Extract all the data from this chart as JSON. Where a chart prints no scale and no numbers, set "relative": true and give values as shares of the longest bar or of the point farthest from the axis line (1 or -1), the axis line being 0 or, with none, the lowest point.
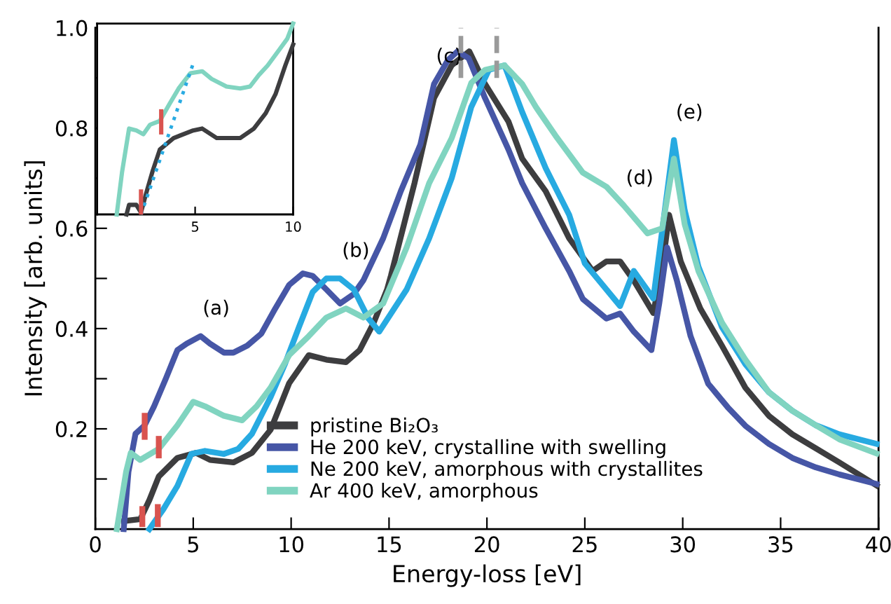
{
  "chart_data": [
    {
      "type": "line",
      "xlabel": "Energy-loss [eV]",
      "ylabel": "Intensity [arb. units]",
      "xlim": [
        0,
        40
      ],
      "ylim": [
        0,
        1.0
      ],
      "xticks": [
        0,
        5,
        10,
        15,
        20,
        25,
        30,
        35,
        40
      ],
      "yticks": [
        {
          "value": 0.1,
          "label": null
        },
        0.2,
        {
          "value": 0.3,
          "label": null
        },
        0.4,
        {
          "value": 0.5,
          "label": null
        },
        0.6,
        {
          "value": 0.7,
          "label": null
        },
        0.8,
        {
          "value": 0.9,
          "label": null
        },
        {
          "value": 1.0,
          "label": "1.0"
        }
      ],
      "legend": "bottom",
      "annotations": [
        {
          "text": "(a)",
          "x": 5.38,
          "y": 0.385
        },
        {
          "text": "(b)",
          "x": 12.5,
          "y": 0.5
        },
        {
          "text": "(c)",
          "x": 17.3,
          "y": 0.888
        },
        {
          "text": "(d)",
          "x": 27.0,
          "y": 0.645
        },
        {
          "text": "(e)",
          "x": 29.55,
          "y": 0.776
        }
      ],
      "series": [
        {
          "name": "pristine Bi₂O₃",
          "color": "#3d3d3f",
          "x": [
            1.45,
            2.3,
            2.76,
            3.24,
            4.19,
            5.14,
            5.86,
            7.05,
            8.0,
            8.95,
            9.9,
            10.9,
            11.8,
            12.8,
            13.5,
            14.2,
            14.9,
            15.1,
            16.3,
            17.3,
            18.2,
            19.1,
            19.9,
            21.1,
            21.8,
            23.0,
            24.2,
            25.4,
            26.1,
            26.8,
            27.5,
            28.5,
            29.0,
            29.3,
            29.9,
            30.9,
            32.0,
            33.2,
            34.4,
            35.6,
            36.8,
            38.0,
            39.9
          ],
          "values": [
            0.016,
            0.02,
            0.058,
            0.105,
            0.142,
            0.152,
            0.138,
            0.133,
            0.152,
            0.198,
            0.291,
            0.347,
            0.338,
            0.333,
            0.357,
            0.41,
            0.478,
            0.506,
            0.69,
            0.86,
            0.925,
            0.953,
            0.888,
            0.813,
            0.739,
            0.674,
            0.58,
            0.515,
            0.534,
            0.534,
            0.496,
            0.431,
            0.534,
            0.627,
            0.534,
            0.44,
            0.366,
            0.282,
            0.226,
            0.189,
            0.161,
            0.133,
            0.087
          ]
        },
        {
          "name": "He 200 keV, crystalline with swelling",
          "color": "#4656a6",
          "x": [
            1.45,
            1.69,
            2.05,
            2.52,
            3.0,
            3.6,
            4.19,
            4.67,
            5.38,
            5.86,
            6.57,
            7.05,
            7.76,
            8.48,
            9.19,
            9.9,
            10.6,
            11.1,
            11.8,
            12.5,
            13.2,
            13.7,
            14.7,
            15.6,
            16.6,
            17.3,
            18.0,
            18.5,
            19.07,
            19.9,
            21.1,
            21.8,
            23.0,
            24.2,
            24.9,
            26.1,
            26.8,
            27.5,
            28.4,
            28.8,
            29.2,
            29.7,
            30.4,
            31.3,
            32.3,
            33.2,
            34.4,
            35.6,
            36.8,
            38.0,
            39.0,
            39.9
          ],
          "values": [
            0,
            0.114,
            0.19,
            0.207,
            0.245,
            0.3,
            0.357,
            0.37,
            0.385,
            0.37,
            0.352,
            0.352,
            0.366,
            0.39,
            0.44,
            0.487,
            0.51,
            0.505,
            0.478,
            0.45,
            0.469,
            0.497,
            0.58,
            0.674,
            0.767,
            0.888,
            0.935,
            0.953,
            0.939,
            0.86,
            0.757,
            0.69,
            0.6,
            0.515,
            0.459,
            0.42,
            0.43,
            0.394,
            0.357,
            0.45,
            0.562,
            0.496,
            0.385,
            0.29,
            0.243,
            0.206,
            0.17,
            0.142,
            0.123,
            0.109,
            0.099,
            0.09
          ]
        },
        {
          "name": "Ne 200 keV, amorphous with crystallites",
          "color": "#27aae1",
          "x": [
            2.76,
            3.48,
            4.19,
            4.9,
            5.6,
            6.57,
            7.3,
            8.0,
            8.95,
            9.67,
            10.4,
            11.1,
            11.8,
            12.5,
            13.2,
            13.95,
            14.5,
            15.9,
            17.05,
            18.2,
            19.2,
            20.1,
            20.9,
            21.8,
            23.0,
            24.2,
            25.0,
            26.8,
            27.5,
            28.5,
            29.55,
            30.1,
            30.8,
            32.0,
            33.2,
            34.4,
            35.6,
            36.8,
            38.0,
            39.9
          ],
          "values": [
            0,
            0.04,
            0.086,
            0.15,
            0.156,
            0.15,
            0.16,
            0.19,
            0.263,
            0.328,
            0.403,
            0.473,
            0.5,
            0.5,
            0.478,
            0.42,
            0.394,
            0.478,
            0.58,
            0.7,
            0.842,
            0.916,
            0.925,
            0.832,
            0.72,
            0.627,
            0.53,
            0.445,
            0.515,
            0.46,
            0.776,
            0.636,
            0.524,
            0.403,
            0.329,
            0.273,
            0.236,
            0.207,
            0.189,
            0.17
          ]
        },
        {
          "name": "Ar 400 keV, amorphous",
          "color": "#80d4c0",
          "x": [
            1.1,
            1.57,
            1.81,
            2.29,
            3.24,
            4.19,
            5.0,
            5.6,
            6.57,
            7.5,
            8.24,
            8.95,
            9.9,
            10.9,
            11.8,
            12.8,
            13.7,
            14.7,
            15.9,
            17.05,
            18.2,
            19.2,
            19.9,
            20.9,
            21.8,
            22.5,
            23.5,
            24.9,
            26.1,
            27.0,
            28.2,
            28.95,
            29.55,
            30.1,
            30.8,
            32.0,
            33.2,
            34.4,
            35.6,
            36.8,
            38.0,
            39.9
          ],
          "values": [
            0,
            0.114,
            0.152,
            0.138,
            0.16,
            0.207,
            0.254,
            0.245,
            0.226,
            0.217,
            0.245,
            0.282,
            0.347,
            0.385,
            0.422,
            0.44,
            0.422,
            0.45,
            0.562,
            0.69,
            0.78,
            0.89,
            0.916,
            0.925,
            0.888,
            0.842,
            0.785,
            0.711,
            0.683,
            0.645,
            0.59,
            0.6,
            0.739,
            0.608,
            0.515,
            0.412,
            0.338,
            0.273,
            0.236,
            0.207,
            0.179,
            0.151
          ]
        },
        {
          "type": "line",
          "color": "#9a9a9a",
          "line_style": "dashed",
          "x": [
            18.67,
            18.67
          ],
          "values": [
            0.9,
            1.0
          ]
        },
        {
          "type": "line",
          "color": "#9a9a9a",
          "line_style": "dashed",
          "x": [
            20.5,
            20.5
          ],
          "values": [
            0.9,
            1.0
          ]
        },
        {
          "type": "line",
          "color": "#d9534f",
          "x": [
            2.52,
            2.52
          ],
          "values": [
            0.184,
            0.226
          ]
        },
        {
          "type": "line",
          "color": "#d9534f",
          "x": [
            3.24,
            3.24
          ],
          "values": [
            0.147,
            0.18
          ]
        },
        {
          "type": "line",
          "color": "#d9534f",
          "x": [
            2.4,
            2.4
          ],
          "values": [
            0.01,
            0.04
          ]
        },
        {
          "type": "line",
          "color": "#d9534f",
          "x": [
            3.19,
            3.19
          ],
          "values": [
            0.01,
            0.044
          ]
        }
      ]
    },
    {
      "type": "line",
      "relative": true,
      "xlim": [
        0,
        10
      ],
      "xticks": [
        5,
        10
      ],
      "tick_labels": "x",
      "series": [
        {
          "color": "#80d4c0",
          "x": [
            1.0,
            1.27,
            1.63,
            2.0,
            2.36,
            2.7,
            3.2,
            3.7,
            4.16,
            4.76,
            5.36,
            5.84,
            6.6,
            7.3,
            7.8,
            8.25,
            8.7,
            9.2,
            9.7,
            10
          ],
          "values": [
            0,
            0.22,
            0.45,
            0.44,
            0.42,
            0.47,
            0.49,
            0.58,
            0.66,
            0.74,
            0.75,
            0.71,
            0.67,
            0.66,
            0.67,
            0.73,
            0.78,
            0.85,
            0.92,
            1
          ]
        },
        {
          "color": "#3d3d3f",
          "x": [
            1.5,
            1.63,
            2.0,
            2.24,
            2.5,
            2.84,
            3.2,
            3.9,
            4.9,
            5.36,
            6.1,
            7.3,
            8.0,
            8.6,
            9.1,
            9.6,
            10
          ],
          "values": [
            0,
            0.05,
            0.05,
            0.01,
            0.11,
            0.23,
            0.34,
            0.4,
            0.44,
            0.45,
            0.4,
            0.4,
            0.45,
            0.53,
            0.63,
            0.78,
            0.89
          ]
        },
        {
          "color": "#29abe2",
          "line_style": "dotted",
          "x": [
            2.24,
            4.9
          ],
          "values": [
            0,
            0.79
          ]
        },
        {
          "color": "#d9534f",
          "x": [
            2.24,
            2.24
          ],
          "values": [
            0.01,
            0.12
          ]
        },
        {
          "color": "#d9534f",
          "x": [
            3.27,
            3.27
          ],
          "values": [
            0.43,
            0.54
          ]
        }
      ]
    }
  ]
}
